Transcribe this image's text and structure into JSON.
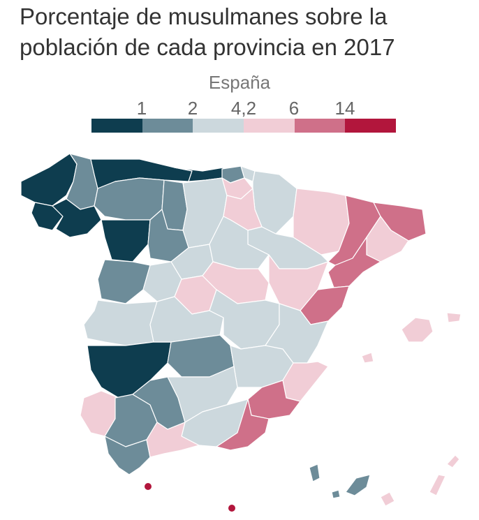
{
  "title_line1": "Porcentaje de musulmanes sobre la",
  "title_line2": "población de cada provincia en 2017",
  "legend": {
    "label": "España",
    "ticks": [
      "1",
      "2",
      "4,2",
      "6",
      "14"
    ],
    "colors": [
      "#0e3d4f",
      "#6d8c99",
      "#ccd8dd",
      "#f1cdd6",
      "#cf7089",
      "#b2163c"
    ]
  }
}
